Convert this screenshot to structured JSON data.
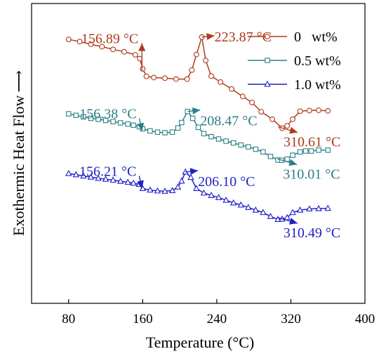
{
  "chart_data": {
    "type": "line",
    "xlabel": "Temperature (°C)",
    "ylabel": "Exothermic Heat Flow",
    "ylabel_arrow": "⟶",
    "xlim": [
      40,
      400
    ],
    "x_ticks": [
      80,
      160,
      240,
      320,
      400
    ],
    "y_tick_labels": false,
    "legend_position": "top-right",
    "series": [
      {
        "name": "0   wt%",
        "color": "#b03a1c",
        "marker": "circle",
        "points": [
          [
            80,
            0.88
          ],
          [
            92,
            0.873
          ],
          [
            104,
            0.864
          ],
          [
            116,
            0.856
          ],
          [
            128,
            0.847
          ],
          [
            140,
            0.839
          ],
          [
            152,
            0.829
          ],
          [
            156.89,
            0.816
          ],
          [
            160,
            0.782
          ],
          [
            164,
            0.757
          ],
          [
            172,
            0.753
          ],
          [
            184,
            0.751
          ],
          [
            196,
            0.748
          ],
          [
            208,
            0.748
          ],
          [
            213,
            0.778
          ],
          [
            218,
            0.83
          ],
          [
            223.87,
            0.888
          ],
          [
            228,
            0.81
          ],
          [
            234,
            0.758
          ],
          [
            244,
            0.738
          ],
          [
            256,
            0.715
          ],
          [
            268,
            0.69
          ],
          [
            278,
            0.67
          ],
          [
            288,
            0.639
          ],
          [
            300,
            0.614
          ],
          [
            310.61,
            0.584
          ],
          [
            316,
            0.592
          ],
          [
            322,
            0.614
          ],
          [
            330,
            0.641
          ],
          [
            340,
            0.643
          ],
          [
            350,
            0.644
          ],
          [
            360,
            0.642
          ]
        ]
      },
      {
        "name": "0.5 wt%",
        "color": "#2a7f86",
        "marker": "square",
        "points": [
          [
            80,
            0.632
          ],
          [
            88,
            0.627
          ],
          [
            96,
            0.622
          ],
          [
            104,
            0.617
          ],
          [
            112,
            0.614
          ],
          [
            120,
            0.61
          ],
          [
            128,
            0.606
          ],
          [
            136,
            0.602
          ],
          [
            144,
            0.598
          ],
          [
            150,
            0.594
          ],
          [
            156.38,
            0.589
          ],
          [
            160,
            0.582
          ],
          [
            168,
            0.575
          ],
          [
            176,
            0.571
          ],
          [
            184,
            0.569
          ],
          [
            192,
            0.571
          ],
          [
            198,
            0.585
          ],
          [
            202,
            0.603
          ],
          [
            208.47,
            0.64
          ],
          [
            214,
            0.617
          ],
          [
            220,
            0.587
          ],
          [
            226,
            0.566
          ],
          [
            234,
            0.556
          ],
          [
            242,
            0.548
          ],
          [
            250,
            0.541
          ],
          [
            258,
            0.535
          ],
          [
            266,
            0.528
          ],
          [
            274,
            0.522
          ],
          [
            282,
            0.514
          ],
          [
            290,
            0.505
          ],
          [
            298,
            0.49
          ],
          [
            306,
            0.478
          ],
          [
            310.01,
            0.477
          ],
          [
            316,
            0.481
          ],
          [
            322,
            0.494
          ],
          [
            330,
            0.505
          ],
          [
            336,
            0.508
          ],
          [
            342,
            0.508
          ],
          [
            350,
            0.511
          ],
          [
            360,
            0.511
          ]
        ]
      },
      {
        "name": "1.0 wt%",
        "color": "#1f1fc8",
        "marker": "triangle",
        "points": [
          [
            80,
            0.433
          ],
          [
            88,
            0.429
          ],
          [
            96,
            0.425
          ],
          [
            104,
            0.421
          ],
          [
            112,
            0.417
          ],
          [
            120,
            0.414
          ],
          [
            128,
            0.411
          ],
          [
            136,
            0.407
          ],
          [
            144,
            0.404
          ],
          [
            150,
            0.401
          ],
          [
            156.21,
            0.397
          ],
          [
            160,
            0.383
          ],
          [
            168,
            0.378
          ],
          [
            176,
            0.375
          ],
          [
            184,
            0.374
          ],
          [
            192,
            0.376
          ],
          [
            198,
            0.388
          ],
          [
            202,
            0.408
          ],
          [
            206.1,
            0.438
          ],
          [
            212,
            0.42
          ],
          [
            218,
            0.383
          ],
          [
            226,
            0.368
          ],
          [
            234,
            0.36
          ],
          [
            242,
            0.353
          ],
          [
            250,
            0.344
          ],
          [
            258,
            0.335
          ],
          [
            266,
            0.328
          ],
          [
            274,
            0.32
          ],
          [
            282,
            0.311
          ],
          [
            290,
            0.303
          ],
          [
            298,
            0.29
          ],
          [
            306,
            0.28
          ],
          [
            310.49,
            0.281
          ],
          [
            316,
            0.286
          ],
          [
            322,
            0.303
          ],
          [
            330,
            0.311
          ],
          [
            340,
            0.315
          ],
          [
            350,
            0.316
          ],
          [
            360,
            0.317
          ]
        ]
      }
    ],
    "annotations": [
      {
        "text": "156.89 °C",
        "x": 156.89,
        "y": 0.816,
        "series": 0,
        "arrow": "up"
      },
      {
        "text": "223.87 °C",
        "x": 223.87,
        "y": 0.888,
        "series": 0,
        "arrow": "right"
      },
      {
        "text": "310.61 °C",
        "x": 310.61,
        "y": 0.584,
        "series": 0,
        "arrow": "right"
      },
      {
        "text": "156.38 °C",
        "x": 156.38,
        "y": 0.589,
        "series": 1,
        "arrow": "down"
      },
      {
        "text": "208.47 °C",
        "x": 208.47,
        "y": 0.64,
        "series": 1,
        "arrow": "right"
      },
      {
        "text": "310.01 °C",
        "x": 310.01,
        "y": 0.477,
        "series": 1,
        "arrow": "right"
      },
      {
        "text": "156.21 °C",
        "x": 156.21,
        "y": 0.397,
        "series": 2,
        "arrow": "down"
      },
      {
        "text": "206.10 °C",
        "x": 206.1,
        "y": 0.438,
        "series": 2,
        "arrow": "right"
      },
      {
        "text": "310.49 °C",
        "x": 310.49,
        "y": 0.281,
        "series": 2,
        "arrow": "right"
      }
    ]
  }
}
